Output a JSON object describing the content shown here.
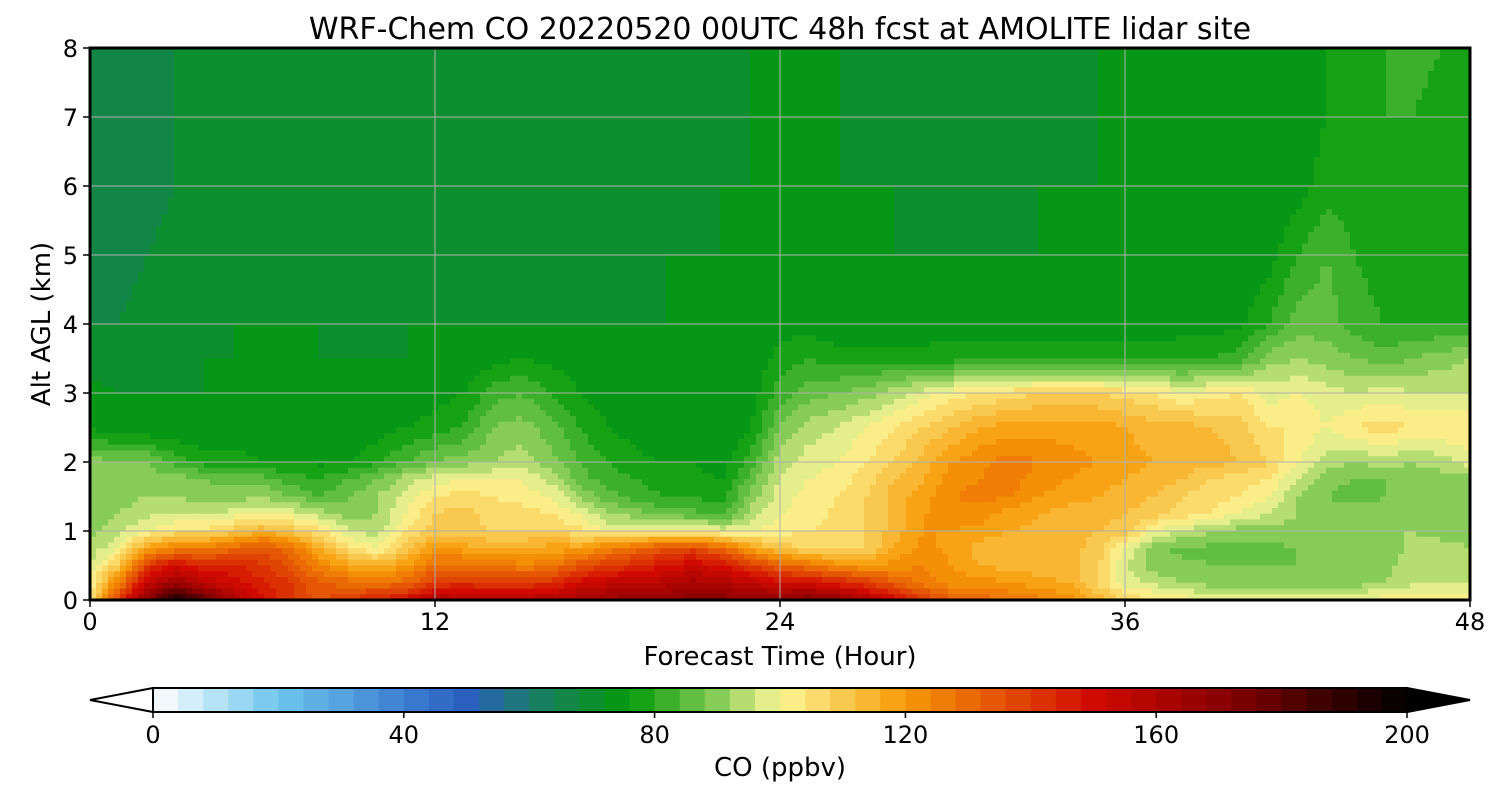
{
  "chart_data": {
    "type": "heatmap",
    "title": "WRF-Chem CO  20220520 00UTC 48h fcst at AMOLITE lidar site",
    "xlabel": "Forecast Time (Hour)",
    "ylabel": "Alt AGL (km)",
    "xlim": [
      0,
      48
    ],
    "ylim": [
      0,
      8
    ],
    "x_ticks": [
      "0",
      "12",
      "24",
      "36",
      "48"
    ],
    "y_ticks": [
      "0",
      "1",
      "2",
      "3",
      "4",
      "5",
      "6",
      "7",
      "8"
    ],
    "grid": true,
    "z_variable": "CO",
    "altitude_km": [
      0.0,
      0.25,
      0.5,
      0.75,
      1.0,
      1.25,
      1.5,
      1.75,
      2.0,
      2.5,
      3.0,
      3.5,
      4.0,
      5.0,
      6.0,
      7.0,
      8.0
    ],
    "forecast_hour": [
      0,
      1,
      2,
      3,
      4,
      5,
      6,
      7,
      8,
      9,
      10,
      11,
      12,
      13,
      14,
      15,
      16,
      17,
      18,
      19,
      20,
      21,
      22,
      23,
      24,
      25,
      26,
      27,
      28,
      29,
      30,
      31,
      32,
      33,
      34,
      35,
      36,
      37,
      38,
      39,
      40,
      41,
      42,
      43,
      44,
      45,
      46,
      47,
      48
    ],
    "co_ppbv_by_altitude": [
      [
        105,
        140,
        170,
        195,
        180,
        160,
        150,
        140,
        135,
        140,
        145,
        150,
        160,
        158,
        156,
        158,
        160,
        162,
        165,
        168,
        168,
        170,
        170,
        168,
        168,
        172,
        168,
        160,
        150,
        140,
        132,
        130,
        128,
        125,
        122,
        115,
        108,
        104,
        102,
        100,
        100,
        100,
        100,
        100,
        100,
        102,
        104,
        102,
        104
      ],
      [
        100,
        125,
        155,
        165,
        155,
        150,
        145,
        140,
        132,
        130,
        128,
        130,
        140,
        142,
        140,
        140,
        142,
        150,
        155,
        155,
        158,
        162,
        160,
        155,
        150,
        150,
        145,
        140,
        132,
        126,
        122,
        122,
        120,
        118,
        116,
        108,
        98,
        95,
        92,
        90,
        90,
        90,
        90,
        90,
        90,
        92,
        95,
        95,
        96
      ],
      [
        96,
        110,
        140,
        150,
        145,
        145,
        140,
        135,
        125,
        118,
        115,
        120,
        128,
        130,
        128,
        125,
        126,
        135,
        140,
        143,
        148,
        152,
        148,
        140,
        132,
        128,
        122,
        120,
        122,
        124,
        120,
        116,
        114,
        113,
        113,
        110,
        96,
        90,
        89,
        88,
        88,
        88,
        88,
        90,
        90,
        90,
        95,
        95,
        96
      ],
      [
        93,
        100,
        118,
        125,
        125,
        130,
        135,
        128,
        115,
        105,
        100,
        110,
        120,
        118,
        115,
        115,
        118,
        118,
        125,
        130,
        135,
        138,
        130,
        118,
        110,
        108,
        106,
        108,
        116,
        122,
        118,
        114,
        112,
        114,
        114,
        110,
        100,
        89,
        87,
        87,
        87,
        87,
        88,
        90,
        90,
        90,
        93,
        94,
        92
      ],
      [
        90,
        95,
        100,
        105,
        105,
        110,
        115,
        110,
        105,
        96,
        94,
        104,
        110,
        110,
        108,
        108,
        108,
        105,
        100,
        100,
        100,
        102,
        98,
        100,
        102,
        104,
        105,
        108,
        114,
        120,
        120,
        118,
        116,
        115,
        114,
        112,
        110,
        100,
        96,
        92,
        90,
        90,
        90,
        90,
        92,
        92,
        92,
        90,
        90
      ],
      [
        90,
        92,
        95,
        96,
        95,
        98,
        100,
        98,
        94,
        90,
        92,
        100,
        108,
        110,
        106,
        106,
        104,
        100,
        92,
        90,
        86,
        85,
        82,
        94,
        100,
        102,
        105,
        108,
        114,
        120,
        122,
        122,
        118,
        116,
        114,
        114,
        112,
        110,
        106,
        104,
        100,
        96,
        92,
        90,
        90,
        90,
        88,
        88,
        90
      ],
      [
        89,
        90,
        92,
        92,
        90,
        90,
        92,
        88,
        84,
        88,
        92,
        98,
        104,
        106,
        104,
        102,
        100,
        92,
        86,
        82,
        80,
        80,
        78,
        90,
        98,
        102,
        104,
        108,
        114,
        118,
        124,
        126,
        124,
        120,
        118,
        116,
        114,
        112,
        108,
        106,
        104,
        100,
        92,
        88,
        86,
        88,
        88,
        88,
        88
      ],
      [
        88,
        89,
        90,
        90,
        88,
        86,
        86,
        82,
        80,
        84,
        88,
        94,
        98,
        100,
        100,
        100,
        95,
        86,
        82,
        80,
        78,
        77,
        76,
        86,
        96,
        100,
        102,
        106,
        112,
        116,
        122,
        124,
        126,
        122,
        120,
        118,
        116,
        114,
        112,
        108,
        106,
        104,
        96,
        90,
        88,
        88,
        90,
        90,
        90
      ],
      [
        90,
        88,
        88,
        82,
        78,
        78,
        76,
        76,
        75,
        76,
        79,
        84,
        88,
        90,
        92,
        94,
        90,
        84,
        80,
        77,
        76,
        76,
        74,
        82,
        94,
        98,
        100,
        104,
        108,
        114,
        120,
        123,
        126,
        124,
        122,
        120,
        118,
        116,
        114,
        114,
        112,
        108,
        100,
        94,
        92,
        94,
        92,
        94,
        98
      ],
      [
        75,
        73,
        72,
        72,
        72,
        72,
        72,
        72,
        72,
        72,
        74,
        76,
        78,
        80,
        88,
        90,
        86,
        80,
        76,
        74,
        72,
        72,
        72,
        76,
        88,
        94,
        96,
        100,
        104,
        108,
        112,
        116,
        118,
        118,
        118,
        118,
        116,
        114,
        114,
        112,
        110,
        104,
        104,
        100,
        104,
        106,
        104,
        104,
        104
      ],
      [
        73,
        72,
        72,
        72,
        72,
        72,
        72,
        72,
        72,
        72,
        72,
        72,
        74,
        76,
        82,
        84,
        80,
        76,
        74,
        74,
        72,
        72,
        72,
        74,
        82,
        86,
        88,
        90,
        94,
        98,
        102,
        104,
        106,
        108,
        108,
        108,
        106,
        104,
        100,
        102,
        104,
        98,
        100,
        98,
        96,
        98,
        96,
        96,
        96
      ],
      [
        70,
        70,
        70,
        71,
        72,
        72,
        72,
        72,
        72,
        72,
        72,
        72,
        72,
        72,
        74,
        76,
        75,
        74,
        73,
        73,
        72,
        72,
        72,
        72,
        78,
        80,
        78,
        78,
        78,
        78,
        78,
        78,
        78,
        78,
        78,
        78,
        78,
        78,
        79,
        80,
        82,
        90,
        92,
        90,
        88,
        86,
        88,
        90,
        92
      ],
      [
        68,
        68,
        69,
        70,
        71,
        72,
        72,
        72,
        72,
        71,
        71,
        72,
        72,
        72,
        72,
        72,
        72,
        72,
        72,
        72,
        72,
        72,
        72,
        72,
        74,
        74,
        73,
        73,
        73,
        73,
        74,
        74,
        74,
        74,
        74,
        74,
        74,
        74,
        74,
        74,
        75,
        80,
        86,
        86,
        82,
        80,
        80,
        80,
        80
      ],
      [
        67,
        67,
        68,
        69,
        70,
        71,
        71,
        71,
        70,
        70,
        70,
        70,
        70,
        70,
        70,
        70,
        70,
        70,
        70,
        71,
        72,
        72,
        72,
        72,
        73,
        73,
        72,
        72,
        72,
        72,
        72,
        72,
        72,
        72,
        72,
        72,
        72,
        72,
        73,
        73,
        73,
        74,
        80,
        84,
        80,
        78,
        76,
        76,
        76
      ],
      [
        67,
        67,
        67,
        68,
        69,
        70,
        70,
        70,
        69,
        69,
        69,
        68,
        68,
        68,
        69,
        69,
        69,
        68,
        68,
        69,
        70,
        71,
        72,
        72,
        73,
        73,
        72,
        72,
        72,
        71,
        71,
        71,
        71,
        72,
        72,
        72,
        72,
        72,
        72,
        72,
        72,
        72,
        74,
        78,
        78,
        76,
        76,
        76,
        76
      ],
      [
        66,
        66,
        67,
        68,
        69,
        69,
        70,
        70,
        69,
        69,
        69,
        68,
        68,
        68,
        69,
        69,
        69,
        68,
        68,
        68,
        69,
        70,
        71,
        72,
        72,
        72,
        72,
        71,
        71,
        70,
        70,
        70,
        70,
        71,
        71,
        72,
        72,
        72,
        72,
        72,
        72,
        72,
        73,
        76,
        78,
        80,
        80,
        78,
        76
      ],
      [
        66,
        66,
        67,
        68,
        69,
        69,
        70,
        70,
        70,
        70,
        70,
        70,
        69,
        69,
        70,
        70,
        70,
        69,
        69,
        69,
        70,
        70,
        71,
        72,
        72,
        72,
        72,
        71,
        71,
        71,
        71,
        71,
        71,
        71,
        72,
        72,
        72,
        72,
        72,
        72,
        72,
        72,
        73,
        76,
        78,
        80,
        82,
        80,
        78
      ]
    ],
    "colorbar": {
      "label": "CO  (ppbv)",
      "vmin": 0,
      "vmax": 200,
      "step": 4,
      "ticks": [
        "0",
        "40",
        "80",
        "120",
        "160",
        "200"
      ],
      "extend": "both",
      "orientation": "horizontal",
      "stops": [
        {
          "value": 0,
          "color": "#ffffff"
        },
        {
          "value": 20,
          "color": "#6ec6ee"
        },
        {
          "value": 40,
          "color": "#3d7fd0"
        },
        {
          "value": 50,
          "color": "#2a5fbf"
        },
        {
          "value": 60,
          "color": "#1b7a6c"
        },
        {
          "value": 76,
          "color": "#049b0a"
        },
        {
          "value": 90,
          "color": "#86cc56"
        },
        {
          "value": 100,
          "color": "#fbf797"
        },
        {
          "value": 120,
          "color": "#f79a07"
        },
        {
          "value": 150,
          "color": "#d10a00"
        },
        {
          "value": 170,
          "color": "#8b0000"
        },
        {
          "value": 200,
          "color": "#000000"
        }
      ]
    }
  }
}
